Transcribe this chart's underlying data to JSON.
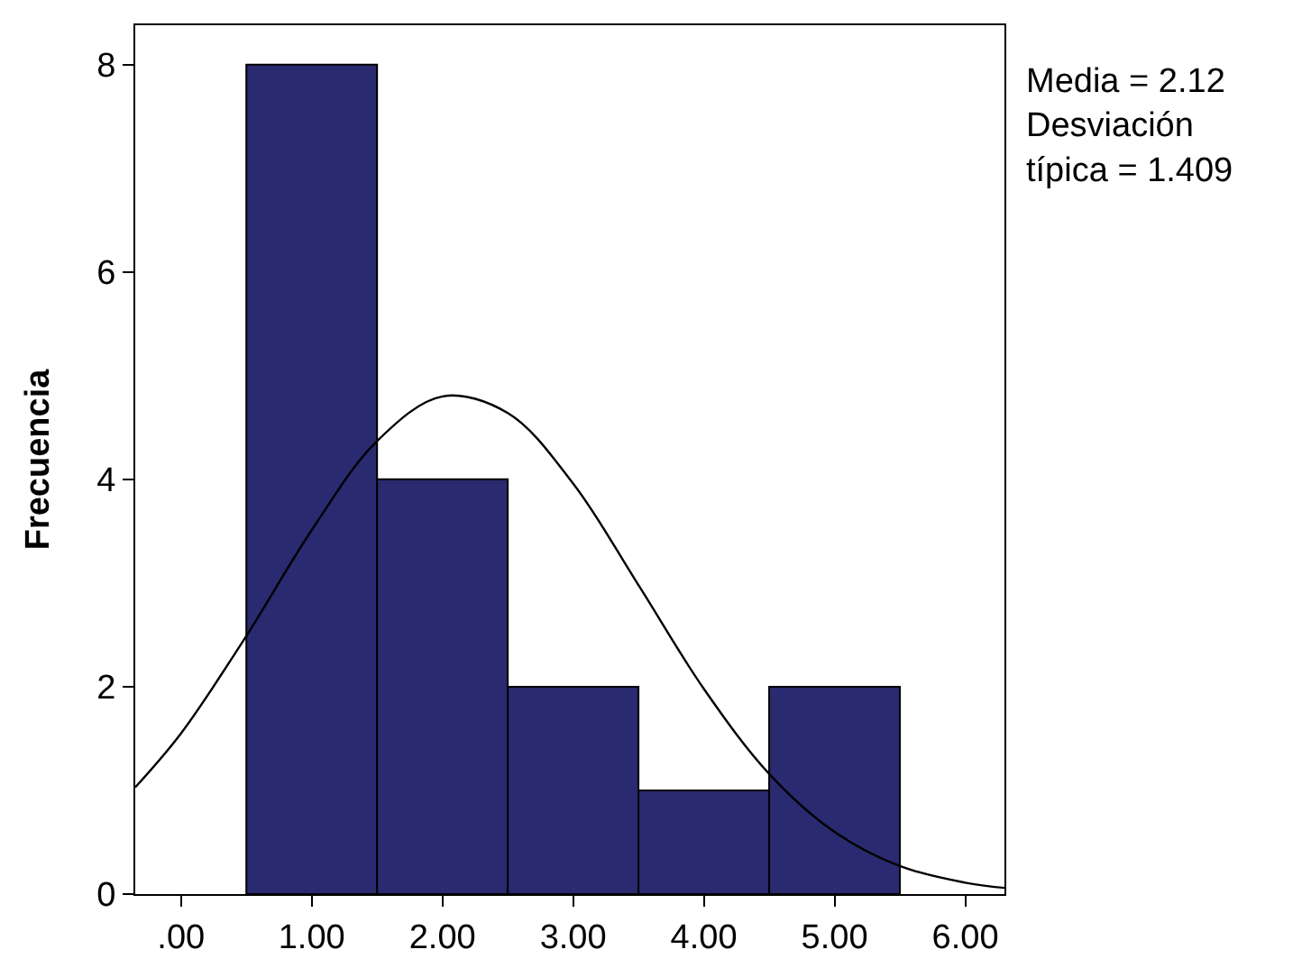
{
  "chart_data": {
    "type": "histogram",
    "ylabel": "Frecuencia",
    "bins": [
      0.5,
      1.5,
      2.5,
      3.5,
      4.5,
      5.5
    ],
    "values": [
      8,
      4,
      2,
      1,
      2
    ],
    "color": "#2a2a70",
    "series": [
      {
        "type": "line",
        "color": "#000000",
        "x": [
          -0.35,
          0,
          0.5,
          1,
          1.5,
          2,
          2.5,
          3,
          3.5,
          4,
          4.5,
          5,
          5.5,
          6,
          6.3
        ],
        "values": [
          1.03,
          1.55,
          2.49,
          3.51,
          4.37,
          4.8,
          4.64,
          3.96,
          2.98,
          1.98,
          1.16,
          0.6,
          0.27,
          0.11,
          0.06
        ]
      }
    ],
    "xlim": [
      -0.35,
      6.3
    ],
    "xticks": [
      {
        "value": 0,
        "label": ".00"
      },
      {
        "value": 1,
        "label": "1.00"
      },
      {
        "value": 2,
        "label": "2.00"
      },
      {
        "value": 3,
        "label": "3.00"
      },
      {
        "value": 4,
        "label": "4.00"
      },
      {
        "value": 5,
        "label": "5.00"
      },
      {
        "value": 6,
        "label": "6.00"
      }
    ],
    "ylim": [
      0,
      8.38
    ],
    "yticks": [
      0,
      2,
      4,
      6,
      8
    ],
    "marker": "none",
    "line_style": "solid",
    "grid": false,
    "annotations": [
      "Media = 2.12",
      "Desviación típica = 1.409"
    ]
  }
}
